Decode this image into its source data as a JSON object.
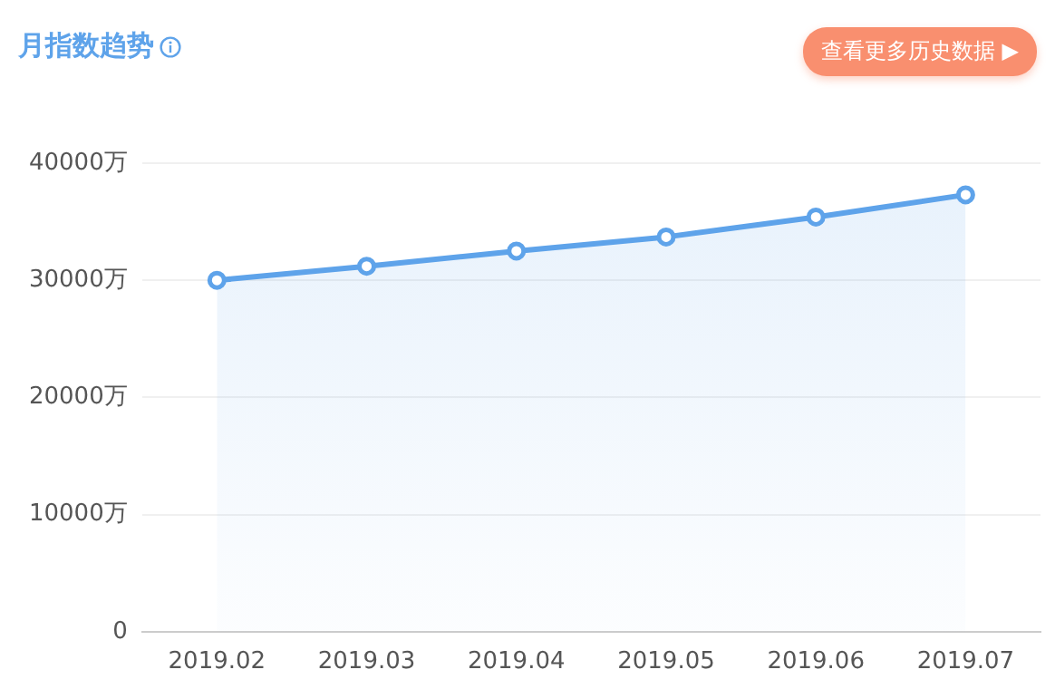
{
  "chart_data": {
    "type": "area",
    "title": "月指数趋势",
    "annotations": [
      "查看更多历史数据 ▶"
    ],
    "categories": [
      "2019.02",
      "2019.03",
      "2019.04",
      "2019.05",
      "2019.06",
      "2019.07"
    ],
    "series": [
      {
        "color": "#5ea3ea",
        "values": [
          30000,
          31200,
          32500,
          33700,
          35400,
          37300
        ]
      }
    ],
    "ylim": [
      0,
      40000
    ],
    "yticks": [
      0,
      {
        "value": 10000,
        "label": "10000万"
      },
      {
        "value": 20000,
        "label": "20000万"
      },
      {
        "value": 30000,
        "label": "30000万"
      },
      {
        "value": 40000,
        "label": "40000万"
      }
    ],
    "grid": "y",
    "legend": false,
    "marker": "circle",
    "line_style": "solid"
  }
}
